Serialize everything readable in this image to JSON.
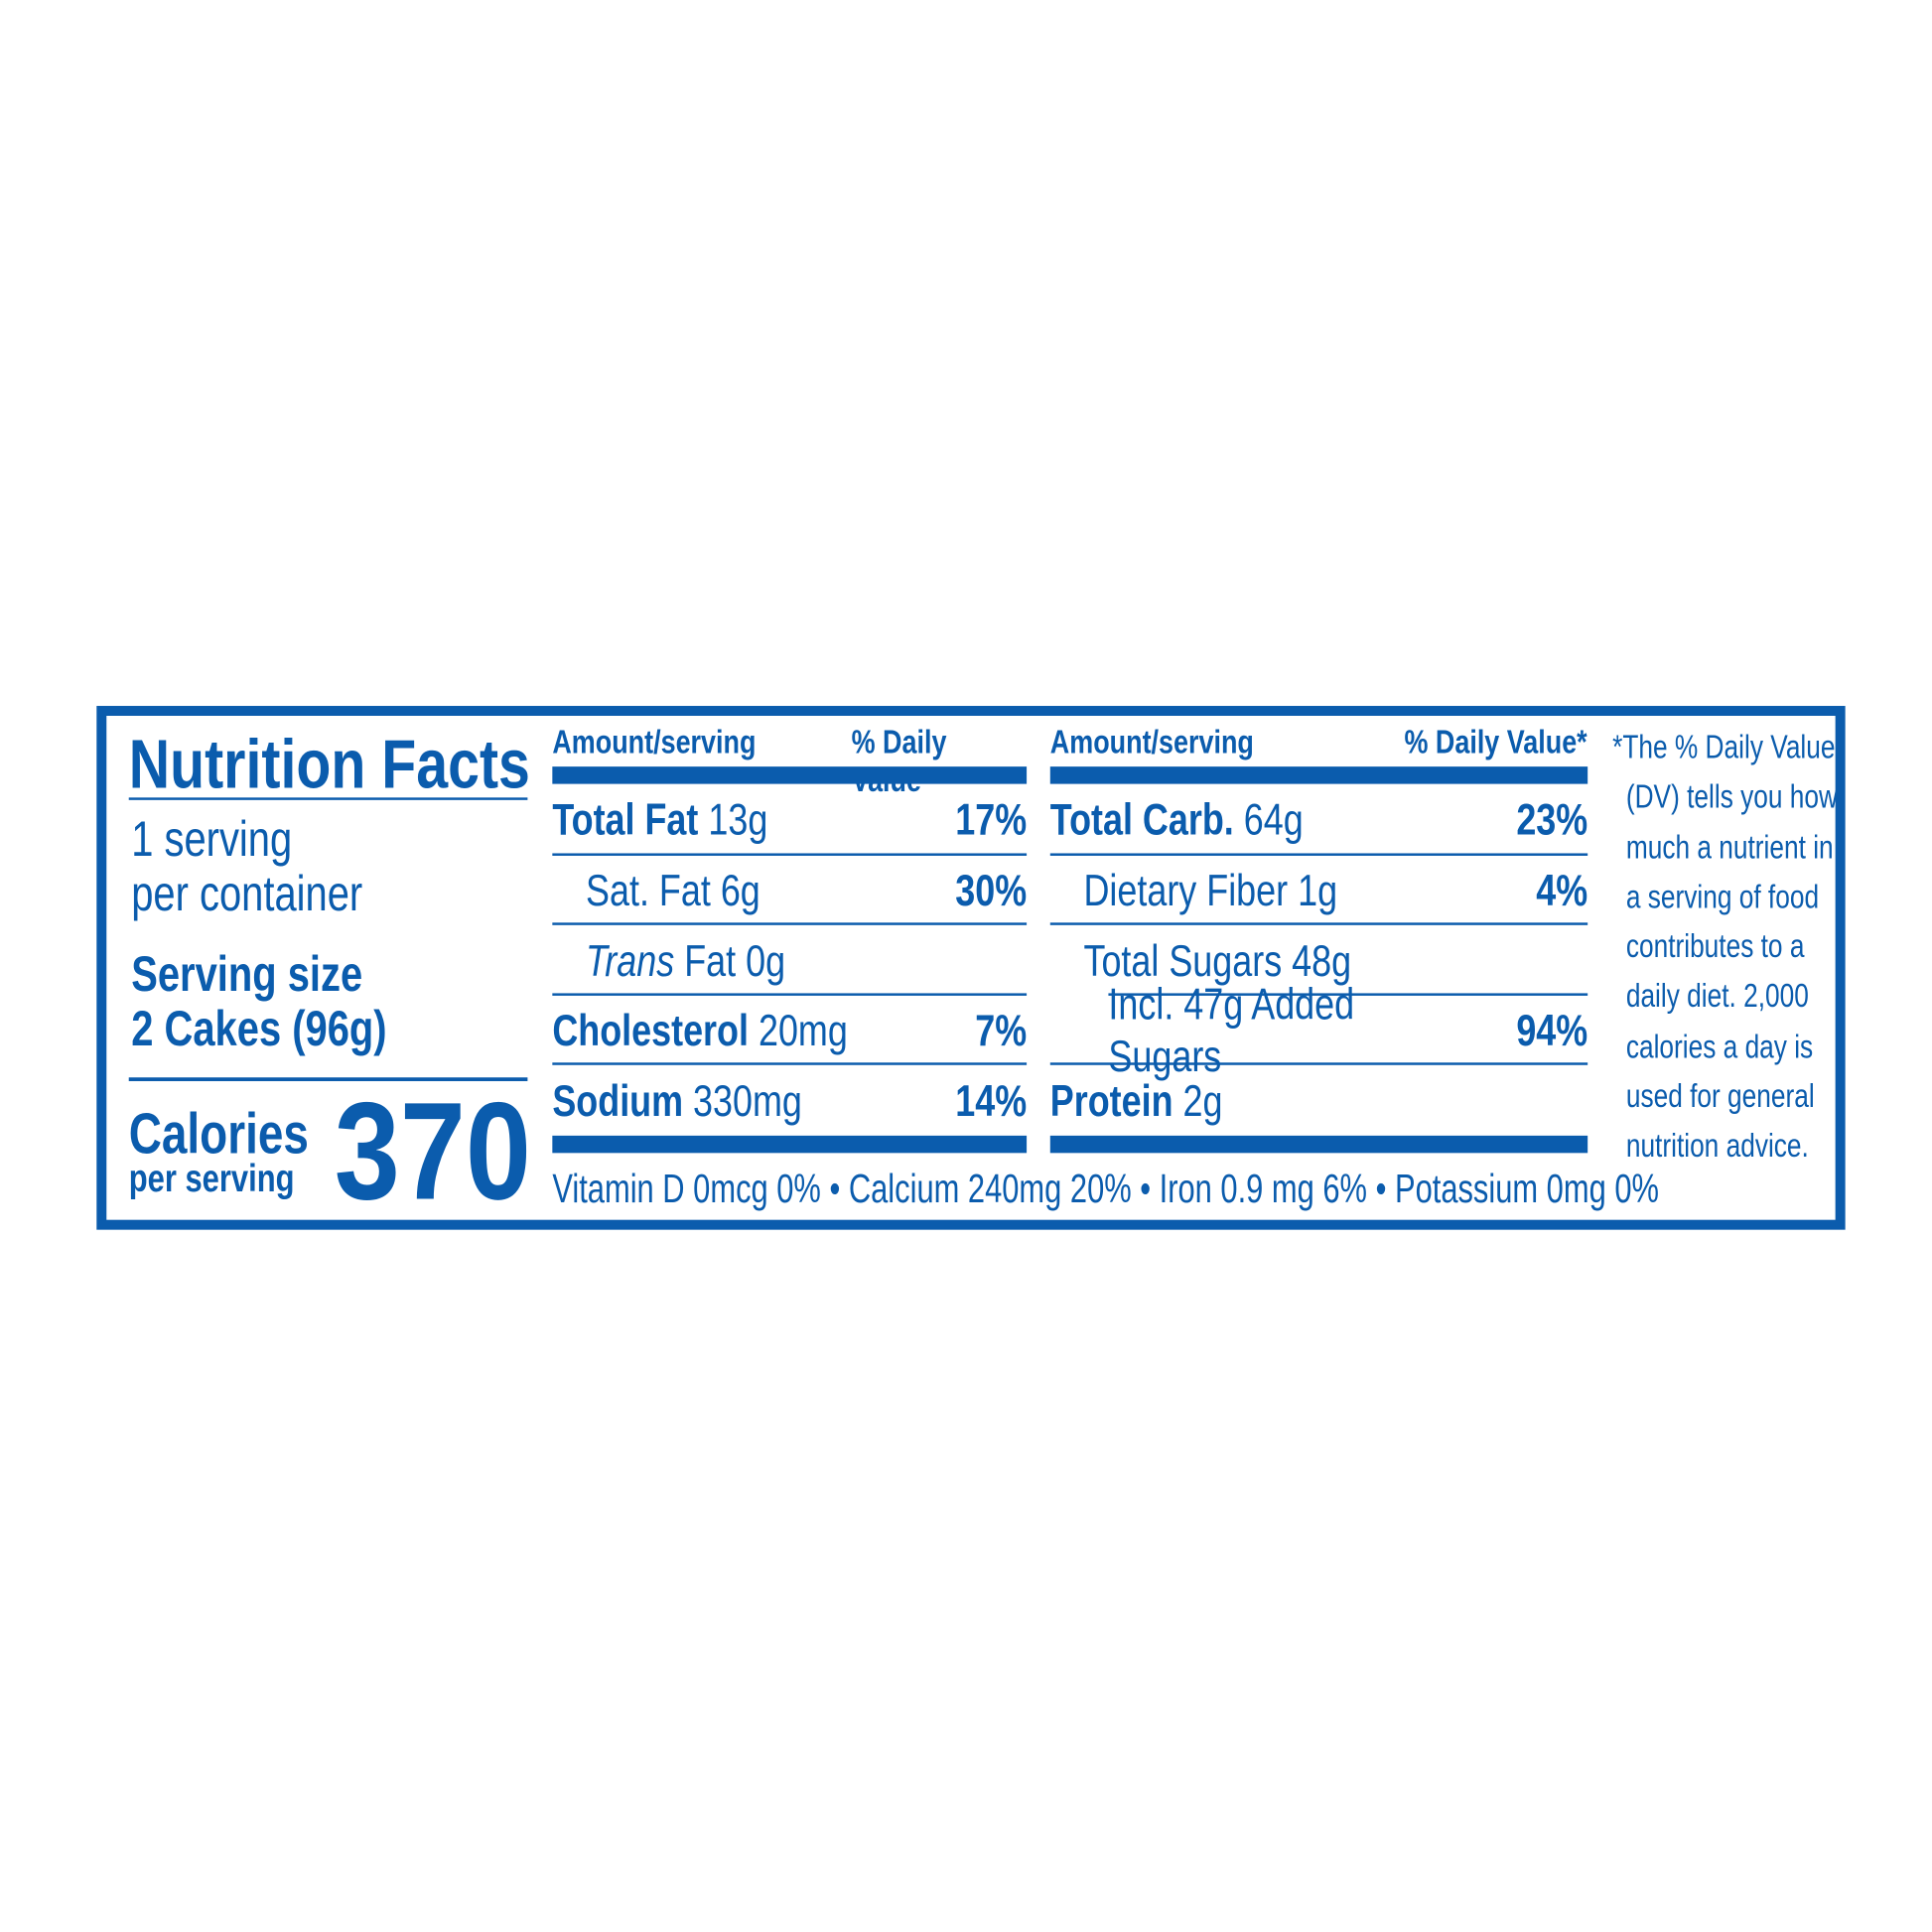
{
  "colors": {
    "label_blue": "#0b5cad"
  },
  "title": "Nutrition Facts",
  "servings": {
    "line1": "1 serving",
    "line2": "per container"
  },
  "serving_size": {
    "label": "Serving size",
    "value": "2 Cakes (96g)"
  },
  "calories": {
    "label": "Calories",
    "sub": "per serving",
    "value": "370"
  },
  "columns": [
    {
      "header_left": "Amount/serving",
      "header_right": "% Daily Value*",
      "rows": [
        {
          "name": "Total Fat",
          "amount": "13g",
          "dv": "17%",
          "bold": true,
          "indent": 0
        },
        {
          "name": "Sat. Fat",
          "amount": "6g",
          "dv": "30%",
          "bold": false,
          "indent": 1
        },
        {
          "name": "Trans",
          "name_suffix": "Fat",
          "amount": "0g",
          "dv": "",
          "bold": false,
          "indent": 1,
          "italic": true
        },
        {
          "name": "Cholesterol",
          "amount": "20mg",
          "dv": "7%",
          "bold": true,
          "indent": 0
        },
        {
          "name": "Sodium",
          "amount": "330mg",
          "dv": "14%",
          "bold": true,
          "indent": 0
        }
      ]
    },
    {
      "header_left": "Amount/serving",
      "header_right": "% Daily Value*",
      "rows": [
        {
          "name": "Total Carb.",
          "amount": "64g",
          "dv": "23%",
          "bold": true,
          "indent": 0
        },
        {
          "name": "Dietary Fiber",
          "amount": "1g",
          "dv": "4%",
          "bold": false,
          "indent": 1
        },
        {
          "name": "Total Sugars",
          "amount": "48g",
          "dv": "",
          "bold": false,
          "indent": 1
        },
        {
          "name": "Incl. 47g Added Sugars",
          "amount": "",
          "dv": "94%",
          "bold": false,
          "indent": 2
        },
        {
          "name": "Protein",
          "amount": "2g",
          "dv": "",
          "bold": true,
          "indent": 0
        }
      ]
    }
  ],
  "vitamins": "Vitamin D 0mcg 0% • Calcium 240mg 20% • Iron 0.9 mg 6% • Potassium 0mg 0%",
  "footnote": [
    "*The % Daily Value",
    "(DV) tells you how",
    "much a nutrient in",
    "a serving of food",
    "contributes to a",
    "daily diet. 2,000",
    "calories a day is",
    "used for general",
    "nutrition advice."
  ]
}
